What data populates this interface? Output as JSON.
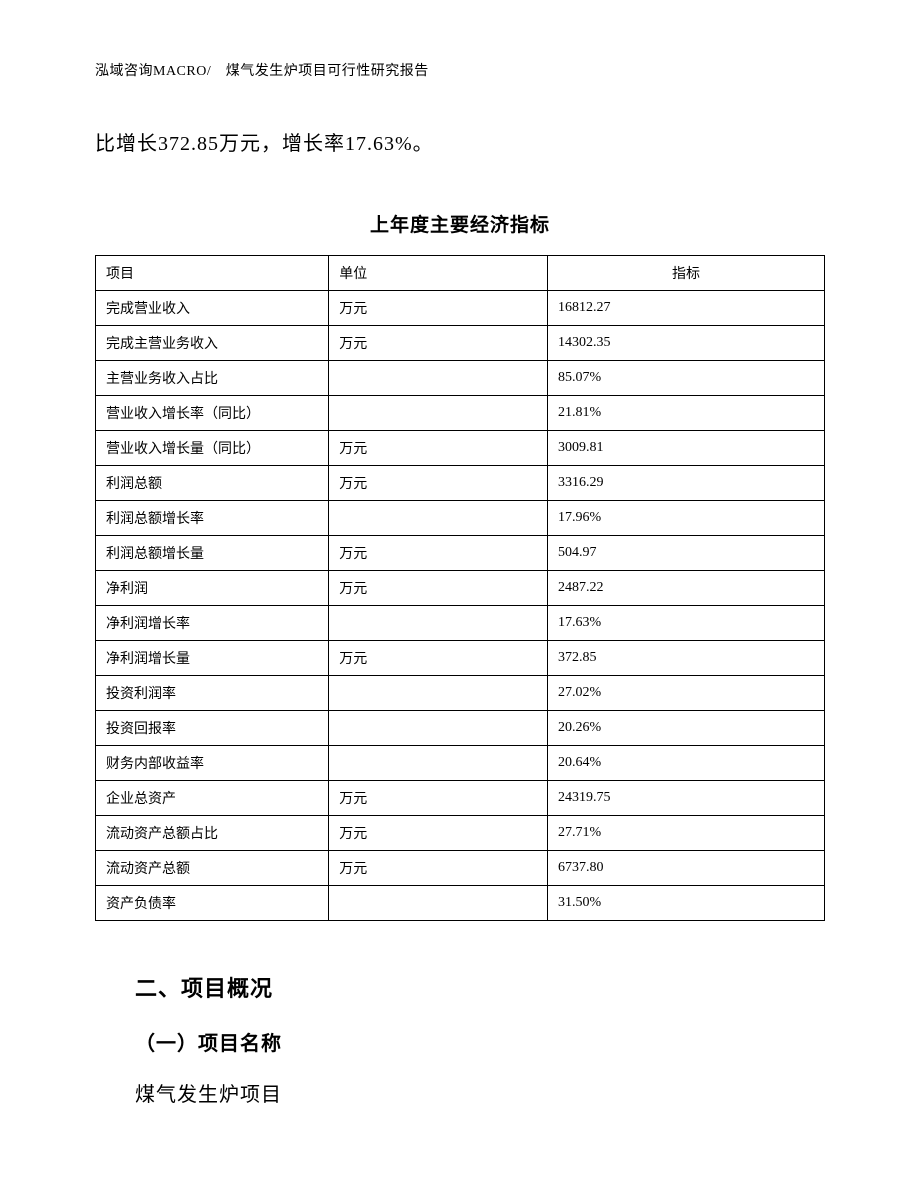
{
  "header": "泓域咨询MACRO/　煤气发生炉项目可行性研究报告",
  "body_paragraph": "比增长372.85万元，增长率17.63%。",
  "table": {
    "title": "上年度主要经济指标",
    "columns": [
      "项目",
      "单位",
      "指标"
    ],
    "rows": [
      [
        "完成营业收入",
        "万元",
        "16812.27"
      ],
      [
        "完成主营业务收入",
        "万元",
        "14302.35"
      ],
      [
        "主营业务收入占比",
        "",
        "85.07%"
      ],
      [
        "营业收入增长率（同比）",
        "",
        "21.81%"
      ],
      [
        "营业收入增长量（同比）",
        "万元",
        "3009.81"
      ],
      [
        "利润总额",
        "万元",
        "3316.29"
      ],
      [
        "利润总额增长率",
        "",
        "17.96%"
      ],
      [
        "利润总额增长量",
        "万元",
        "504.97"
      ],
      [
        "净利润",
        "万元",
        "2487.22"
      ],
      [
        "净利润增长率",
        "",
        "17.63%"
      ],
      [
        "净利润增长量",
        "万元",
        "372.85"
      ],
      [
        "投资利润率",
        "",
        "27.02%"
      ],
      [
        "投资回报率",
        "",
        "20.26%"
      ],
      [
        "财务内部收益率",
        "",
        "20.64%"
      ],
      [
        "企业总资产",
        "万元",
        "24319.75"
      ],
      [
        "流动资产总额占比",
        "万元",
        "27.71%"
      ],
      [
        "流动资产总额",
        "万元",
        "6737.80"
      ],
      [
        "资产负债率",
        "",
        "31.50%"
      ]
    ]
  },
  "section": {
    "heading": "二、项目概况",
    "subsection_heading": "（一）项目名称",
    "subsection_body": "煤气发生炉项目"
  }
}
